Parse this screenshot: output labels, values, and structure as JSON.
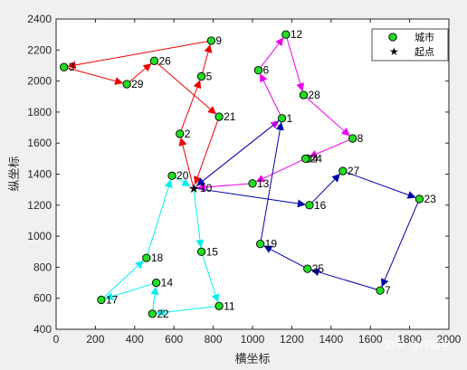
{
  "chart_data": {
    "type": "scatter",
    "xlabel": "横坐标",
    "ylabel": "纵坐标",
    "xlim": [
      0,
      2000
    ],
    "ylim": [
      400,
      2400
    ],
    "xticks": [
      0,
      200,
      400,
      600,
      800,
      1000,
      1200,
      1400,
      1600,
      1800,
      2000
    ],
    "yticks": [
      400,
      600,
      800,
      1000,
      1200,
      1400,
      1600,
      1800,
      2000,
      2200,
      2400
    ],
    "grid": false,
    "legend_position": "top-right",
    "legend": [
      {
        "label": "城市",
        "marker": "circle",
        "color": "#22dd22"
      },
      {
        "label": "起点",
        "marker": "star",
        "color": "#000000"
      }
    ],
    "depot": {
      "label": "10",
      "x": 700,
      "y": 1310
    },
    "cities": [
      {
        "label": "1",
        "x": 1150,
        "y": 1760
      },
      {
        "label": "2",
        "x": 630,
        "y": 1660
      },
      {
        "label": "4",
        "x": 1280,
        "y": 1500
      },
      {
        "label": "5",
        "x": 740,
        "y": 2030
      },
      {
        "label": "6",
        "x": 1030,
        "y": 2070
      },
      {
        "label": "7",
        "x": 1650,
        "y": 650
      },
      {
        "label": "8",
        "x": 1510,
        "y": 1630
      },
      {
        "label": "9",
        "x": 790,
        "y": 2260
      },
      {
        "label": "11",
        "x": 830,
        "y": 550
      },
      {
        "label": "12",
        "x": 1170,
        "y": 2300
      },
      {
        "label": "13",
        "x": 1000,
        "y": 1340
      },
      {
        "label": "14",
        "x": 510,
        "y": 700
      },
      {
        "label": "15",
        "x": 740,
        "y": 900
      },
      {
        "label": "16",
        "x": 1290,
        "y": 1200
      },
      {
        "label": "17",
        "x": 230,
        "y": 590
      },
      {
        "label": "18",
        "x": 460,
        "y": 860
      },
      {
        "label": "19",
        "x": 1040,
        "y": 950
      },
      {
        "label": "20",
        "x": 590,
        "y": 1390
      },
      {
        "label": "21",
        "x": 830,
        "y": 1770
      },
      {
        "label": "22",
        "x": 490,
        "y": 500
      },
      {
        "label": "23",
        "x": 1850,
        "y": 1240
      },
      {
        "label": "24",
        "x": 1270,
        "y": 1500
      },
      {
        "label": "25",
        "x": 1280,
        "y": 790
      },
      {
        "label": "26",
        "x": 500,
        "y": 2130
      },
      {
        "label": "27",
        "x": 1460,
        "y": 1420
      },
      {
        "label": "28",
        "x": 1260,
        "y": 1910
      },
      {
        "label": "29",
        "x": 360,
        "y": 1980
      },
      {
        "label": "3",
        "x": 40,
        "y": 2090
      }
    ],
    "routes": [
      {
        "color": "#ee0000",
        "stops": [
          "10",
          "2",
          "5",
          "9",
          "3",
          "29",
          "26",
          "21",
          "10"
        ]
      },
      {
        "color": "#ee00ee",
        "stops": [
          "10",
          "1",
          "6",
          "12",
          "28",
          "8",
          "24",
          "13",
          "10"
        ]
      },
      {
        "color": "#0000aa",
        "stops": [
          "10",
          "16",
          "27",
          "23",
          "7",
          "25",
          "19",
          "1",
          "10"
        ]
      },
      {
        "color": "#00eeee",
        "stops": [
          "10",
          "15",
          "11",
          "22",
          "14",
          "17",
          "18",
          "20",
          "10"
        ]
      }
    ]
  },
  "watermark": "知乎 @IT猿手"
}
